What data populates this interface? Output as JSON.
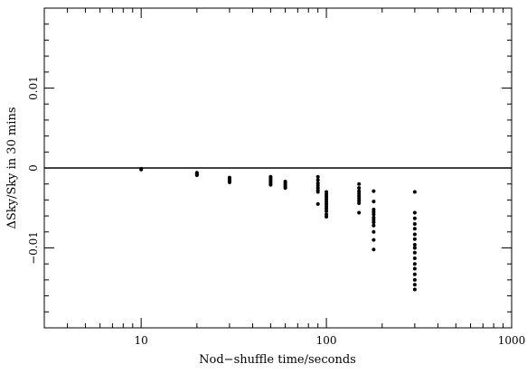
{
  "chart_data": {
    "type": "scatter",
    "title": "",
    "xlabel": "Nod−shuffle time/seconds",
    "ylabel": "ΔSky/Sky in 30 mins",
    "xscale": "log",
    "xlim": [
      3,
      1000
    ],
    "ylim": [
      -0.02,
      0.02
    ],
    "x_ticks": [
      {
        "value": 10,
        "label": "10"
      },
      {
        "value": 100,
        "label": "100"
      },
      {
        "value": 1000,
        "label": "1000"
      }
    ],
    "y_ticks": [
      {
        "value": 0.01,
        "label": "0.01"
      },
      {
        "value": 0,
        "label": "0"
      },
      {
        "value": -0.01,
        "label": "−0.01"
      }
    ],
    "reference_line": {
      "y": 0
    },
    "grid": false,
    "legend": "none",
    "marker_color": "#000000",
    "series": [
      {
        "points": [
          {
            "x": 10,
            "y": -0.0001
          },
          {
            "x": 10,
            "y": -0.0002
          },
          {
            "x": 20,
            "y": -0.0006
          },
          {
            "x": 20,
            "y": -0.0007
          },
          {
            "x": 20,
            "y": -0.0008
          },
          {
            "x": 20,
            "y": -0.0009
          },
          {
            "x": 30,
            "y": -0.0012
          },
          {
            "x": 30,
            "y": -0.0013
          },
          {
            "x": 30,
            "y": -0.0015
          },
          {
            "x": 30,
            "y": -0.0016
          },
          {
            "x": 30,
            "y": -0.0018
          },
          {
            "x": 50,
            "y": -0.0011
          },
          {
            "x": 50,
            "y": -0.0013
          },
          {
            "x": 50,
            "y": -0.0015
          },
          {
            "x": 50,
            "y": -0.0017
          },
          {
            "x": 50,
            "y": -0.0019
          },
          {
            "x": 50,
            "y": -0.0021
          },
          {
            "x": 60,
            "y": -0.0017
          },
          {
            "x": 60,
            "y": -0.0019
          },
          {
            "x": 60,
            "y": -0.0021
          },
          {
            "x": 60,
            "y": -0.0023
          },
          {
            "x": 60,
            "y": -0.0025
          },
          {
            "x": 90,
            "y": -0.0011
          },
          {
            "x": 90,
            "y": -0.0015
          },
          {
            "x": 90,
            "y": -0.0019
          },
          {
            "x": 90,
            "y": -0.0022
          },
          {
            "x": 90,
            "y": -0.0025
          },
          {
            "x": 90,
            "y": -0.0028
          },
          {
            "x": 90,
            "y": -0.003
          },
          {
            "x": 90,
            "y": -0.0045
          },
          {
            "x": 100,
            "y": -0.003
          },
          {
            "x": 100,
            "y": -0.0033
          },
          {
            "x": 100,
            "y": -0.0036
          },
          {
            "x": 100,
            "y": -0.0039
          },
          {
            "x": 100,
            "y": -0.0042
          },
          {
            "x": 100,
            "y": -0.0045
          },
          {
            "x": 100,
            "y": -0.0048
          },
          {
            "x": 100,
            "y": -0.0051
          },
          {
            "x": 100,
            "y": -0.0054
          },
          {
            "x": 100,
            "y": -0.0058
          },
          {
            "x": 100,
            "y": -0.0061
          },
          {
            "x": 150,
            "y": -0.002
          },
          {
            "x": 150,
            "y": -0.0025
          },
          {
            "x": 150,
            "y": -0.0029
          },
          {
            "x": 150,
            "y": -0.0032
          },
          {
            "x": 150,
            "y": -0.0035
          },
          {
            "x": 150,
            "y": -0.0038
          },
          {
            "x": 150,
            "y": -0.0041
          },
          {
            "x": 150,
            "y": -0.0044
          },
          {
            "x": 150,
            "y": -0.0056
          },
          {
            "x": 180,
            "y": -0.0029
          },
          {
            "x": 180,
            "y": -0.0042
          },
          {
            "x": 180,
            "y": -0.0052
          },
          {
            "x": 180,
            "y": -0.0055
          },
          {
            "x": 180,
            "y": -0.0058
          },
          {
            "x": 180,
            "y": -0.0062
          },
          {
            "x": 180,
            "y": -0.0065
          },
          {
            "x": 180,
            "y": -0.0068
          },
          {
            "x": 180,
            "y": -0.0072
          },
          {
            "x": 180,
            "y": -0.008
          },
          {
            "x": 180,
            "y": -0.009
          },
          {
            "x": 180,
            "y": -0.0102
          },
          {
            "x": 300,
            "y": -0.003
          },
          {
            "x": 300,
            "y": -0.0056
          },
          {
            "x": 300,
            "y": -0.0063
          },
          {
            "x": 300,
            "y": -0.007
          },
          {
            "x": 300,
            "y": -0.0076
          },
          {
            "x": 300,
            "y": -0.0083
          },
          {
            "x": 300,
            "y": -0.0089
          },
          {
            "x": 300,
            "y": -0.0096
          },
          {
            "x": 300,
            "y": -0.01
          },
          {
            "x": 300,
            "y": -0.0106
          },
          {
            "x": 300,
            "y": -0.0113
          },
          {
            "x": 300,
            "y": -0.012
          },
          {
            "x": 300,
            "y": -0.0126
          },
          {
            "x": 300,
            "y": -0.0133
          },
          {
            "x": 300,
            "y": -0.014
          },
          {
            "x": 300,
            "y": -0.0146
          },
          {
            "x": 300,
            "y": -0.0152
          }
        ]
      }
    ]
  }
}
